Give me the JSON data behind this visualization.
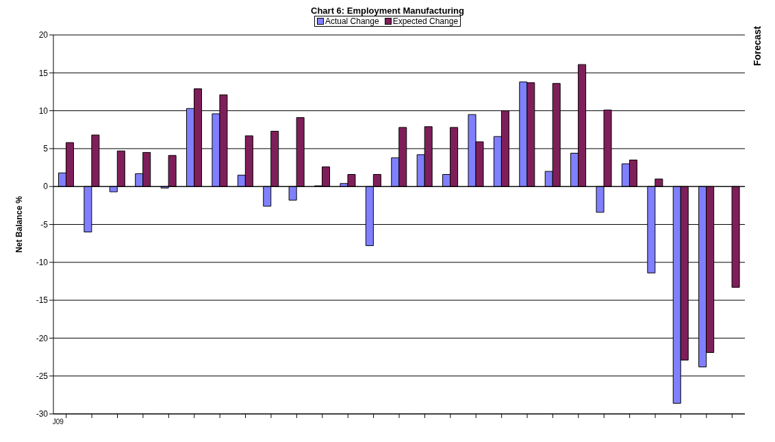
{
  "chart_data": {
    "type": "bar",
    "title": "Chart 6: Employment Manufacturing",
    "ylabel": "Net Balance %",
    "annotations": [
      "Forecast"
    ],
    "categories": [
      "J09",
      null,
      null,
      null,
      null,
      null,
      null,
      null,
      null,
      null,
      null,
      null,
      null,
      null,
      null,
      null,
      null,
      null,
      null,
      null,
      null,
      null,
      null,
      null,
      null,
      null,
      null
    ],
    "series": [
      {
        "name": "Actual Change",
        "color": "#8080ff",
        "values": [
          1.8,
          -6.0,
          -0.7,
          1.7,
          -0.2,
          10.3,
          9.6,
          1.5,
          -2.6,
          -1.8,
          0.1,
          0.4,
          -7.8,
          3.8,
          4.2,
          1.6,
          9.5,
          6.6,
          13.8,
          2.0,
          4.4,
          -3.4,
          3.0,
          -11.4,
          -28.6,
          -23.8,
          null
        ]
      },
      {
        "name": "Expected Change",
        "color": "#7f1f5a",
        "values": [
          5.8,
          6.8,
          4.7,
          4.5,
          4.1,
          12.9,
          12.1,
          6.7,
          7.3,
          9.1,
          2.6,
          1.6,
          1.6,
          7.8,
          7.9,
          7.8,
          5.9,
          10.0,
          13.7,
          13.6,
          16.1,
          10.1,
          3.5,
          1.0,
          -22.9,
          -21.9,
          -13.3
        ]
      }
    ],
    "ylim": [
      -30,
      20
    ],
    "yticks": [
      -30,
      -25,
      -20,
      -15,
      -10,
      -5,
      0,
      5,
      10,
      15,
      20
    ],
    "grid": "y",
    "legend": "top"
  }
}
